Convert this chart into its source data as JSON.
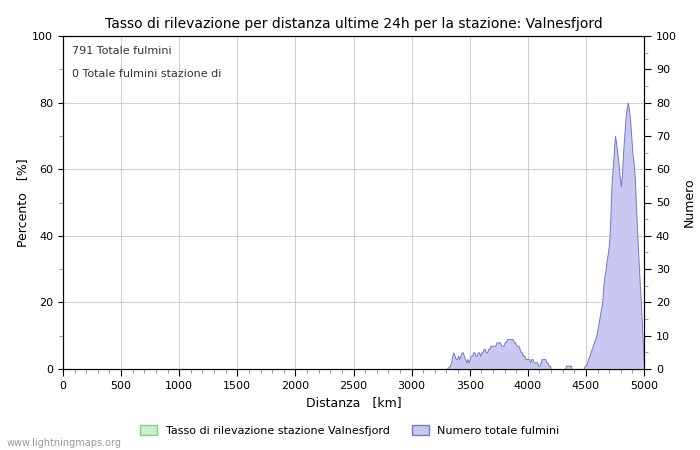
{
  "title": "Tasso di rilevazione per distanza ultime 24h per la stazione: Valnesfjord",
  "xlabel": "Distanza   [km]",
  "ylabel_left": "Percento   [%]",
  "ylabel_right": "Numero",
  "annotation_line1": "791 Totale fulmini",
  "annotation_line2": "0 Totale fulmini stazione di",
  "legend_label1": "Tasso di rilevazione stazione Valnesfjord",
  "legend_label2": "Numero totale fulmini",
  "xlim": [
    0,
    5000
  ],
  "ylim_left": [
    0,
    100
  ],
  "ylim_right": [
    0,
    100
  ],
  "xticks": [
    0,
    500,
    1000,
    1500,
    2000,
    2500,
    3000,
    3500,
    4000,
    4500,
    5000
  ],
  "yticks_left": [
    0,
    20,
    40,
    60,
    80,
    100
  ],
  "yticks_right": [
    0,
    10,
    20,
    30,
    40,
    50,
    60,
    70,
    80,
    90,
    100
  ],
  "background_color": "#ffffff",
  "plot_bg_color": "#ffffff",
  "grid_color": "#bbbbbb",
  "fill_color_blue": "#c8c8f0",
  "fill_color_green": "#c8f0c8",
  "line_color_blue": "#7777cc",
  "line_color_green": "#88cc88",
  "watermark": "www.lightningmaps.org",
  "lightning_x": [
    0,
    3299,
    3300,
    3330,
    3340,
    3350,
    3360,
    3370,
    3380,
    3390,
    3400,
    3410,
    3420,
    3430,
    3440,
    3450,
    3460,
    3470,
    3480,
    3490,
    3500,
    3510,
    3520,
    3530,
    3540,
    3550,
    3560,
    3570,
    3580,
    3590,
    3600,
    3610,
    3620,
    3630,
    3640,
    3650,
    3660,
    3670,
    3680,
    3690,
    3700,
    3710,
    3720,
    3730,
    3740,
    3750,
    3760,
    3770,
    3780,
    3790,
    3800,
    3810,
    3820,
    3830,
    3840,
    3850,
    3860,
    3870,
    3880,
    3890,
    3900,
    3910,
    3920,
    3930,
    3940,
    3950,
    3960,
    3970,
    3980,
    3990,
    4000,
    4010,
    4020,
    4030,
    4040,
    4050,
    4060,
    4070,
    4080,
    4090,
    4100,
    4110,
    4120,
    4130,
    4140,
    4150,
    4160,
    4170,
    4180,
    4190,
    4200,
    4210,
    4220,
    4230,
    4240,
    4250,
    4260,
    4270,
    4280,
    4290,
    4300,
    4310,
    4320,
    4330,
    4340,
    4350,
    4360,
    4370,
    4380,
    4390,
    4400,
    4410,
    4420,
    4430,
    4440,
    4450,
    4460,
    4470,
    4480,
    4490,
    4500,
    4510,
    4520,
    4530,
    4540,
    4550,
    4560,
    4570,
    4580,
    4590,
    4600,
    4610,
    4620,
    4630,
    4640,
    4650,
    4660,
    4670,
    4680,
    4690,
    4700,
    4710,
    4720,
    4730,
    4740,
    4750,
    4760,
    4770,
    4780,
    4790,
    4800,
    4810,
    4820,
    4830,
    4840,
    4850,
    4860,
    4870,
    4880,
    4890,
    4900,
    4910,
    4920,
    4930,
    4940,
    4950,
    4960,
    4970,
    4980,
    4990,
    5000
  ],
  "lightning_y": [
    0,
    0,
    0,
    1,
    2,
    4,
    5,
    4,
    3,
    3,
    4,
    3,
    4,
    5,
    5,
    4,
    3,
    2,
    3,
    2,
    3,
    4,
    4,
    5,
    5,
    4,
    4,
    5,
    5,
    4,
    5,
    5,
    6,
    6,
    5,
    5,
    6,
    6,
    7,
    7,
    7,
    7,
    7,
    8,
    8,
    8,
    8,
    7,
    7,
    7,
    8,
    8,
    9,
    9,
    9,
    9,
    9,
    9,
    8,
    8,
    7,
    7,
    7,
    6,
    5,
    5,
    4,
    4,
    3,
    3,
    3,
    3,
    2,
    3,
    3,
    2,
    2,
    2,
    2,
    1,
    1,
    2,
    3,
    3,
    3,
    3,
    2,
    2,
    1,
    1,
    0,
    0,
    0,
    0,
    0,
    0,
    0,
    0,
    0,
    0,
    0,
    0,
    0,
    1,
    1,
    1,
    1,
    1,
    0,
    0,
    0,
    0,
    0,
    0,
    0,
    0,
    0,
    0,
    0,
    1,
    1,
    2,
    3,
    4,
    5,
    6,
    7,
    8,
    9,
    10,
    12,
    14,
    16,
    18,
    20,
    25,
    28,
    30,
    33,
    35,
    38,
    45,
    55,
    60,
    65,
    70,
    68,
    65,
    62,
    58,
    55,
    58,
    65,
    70,
    75,
    78,
    80,
    78,
    75,
    70,
    65,
    62,
    58,
    50,
    42,
    35,
    28,
    22,
    15,
    8,
    0
  ]
}
